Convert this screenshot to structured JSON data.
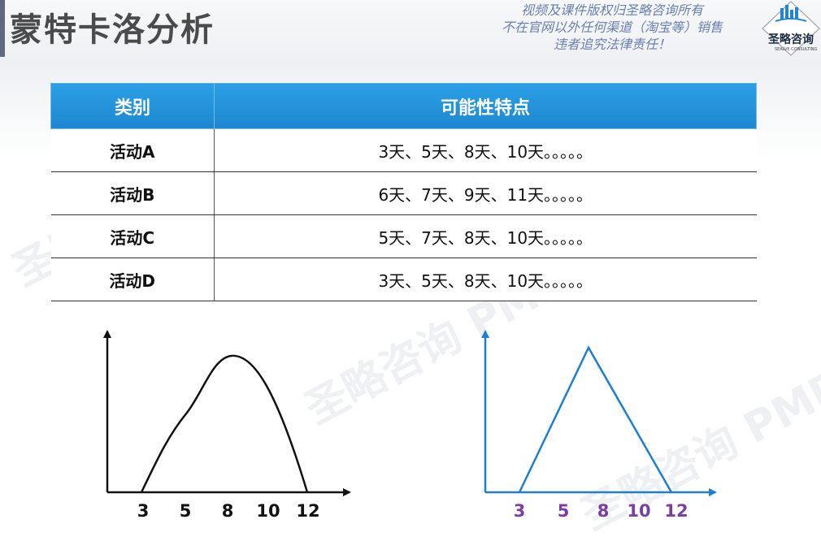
{
  "title": "蒙特卡洛分析",
  "notice": [
    "视频及课件版权归圣略咨询所有",
    "不在官网以外任何渠道（淘宝等）销售",
    "违者追究法律责任！"
  ],
  "logo": {
    "name": "圣略咨询",
    "sub": "SEALVE CONSULTING"
  },
  "watermark": [
    "圣略咨询PMP-老杨",
    "圣略咨询 PMP-老杨",
    "圣略咨询 PMP-老"
  ],
  "table": {
    "headers": [
      "类别",
      "可能性特点"
    ],
    "rows": [
      {
        "category": "活动A",
        "values": "3天、5天、8天、10天。。。。。"
      },
      {
        "category": "活动B",
        "values": "6天、7天、9天、11天。。。。。"
      },
      {
        "category": "活动C",
        "values": "5天、7天、8天、10天。。。。。"
      },
      {
        "category": "活动D",
        "values": "3天、5天、8天、10天。。。。。"
      }
    ]
  },
  "charts": {
    "left": {
      "ticks": [
        "3",
        "5",
        "8",
        "10",
        "12"
      ],
      "color": "#111111",
      "shape": "bell-curve"
    },
    "right": {
      "ticks": [
        "3",
        "5",
        "8",
        "10",
        "12"
      ],
      "color": "#1f7fcf",
      "tick_color": "#7a3fa0",
      "shape": "triangle"
    }
  }
}
